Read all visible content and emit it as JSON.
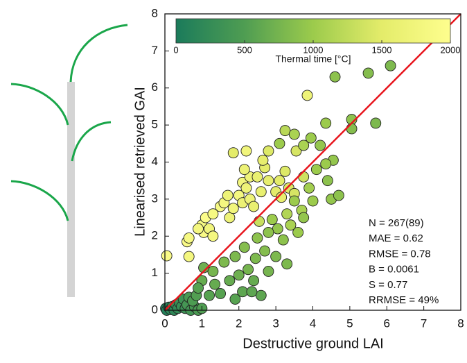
{
  "chart_data": {
    "type": "scatter",
    "x_label": "Destructive ground LAI",
    "y_label": "Linearised retrieved GAI",
    "xlim": [
      0,
      8
    ],
    "ylim": [
      0,
      8
    ],
    "xticks": [
      0,
      1,
      2,
      3,
      4,
      5,
      6,
      7,
      8
    ],
    "yticks": [
      0,
      1,
      2,
      3,
      4,
      5,
      6,
      7,
      8
    ],
    "identity_line": true,
    "identity_color": "#e8141c",
    "marker_edge_color": "#222222",
    "colorbar": {
      "label": "Thermal time  [°C]",
      "lim": [
        0,
        2000
      ],
      "ticks": [
        0,
        500,
        1000,
        1500,
        2000
      ],
      "colormap": [
        "#1b7b5b",
        "#4f9d52",
        "#9ccb4c",
        "#e4ec6a",
        "#fefe8e"
      ]
    },
    "annotations": [
      "N = 267(89)",
      "MAE = 0.62",
      "RMSE = 0.78",
      "B = 0.0061",
      "S = 0.77",
      "RRMSE = 49%"
    ],
    "x": [
      0.02,
      0.05,
      0.1,
      0.15,
      0.2,
      0.25,
      0.3,
      0.35,
      0.4,
      0.45,
      0.5,
      0.55,
      0.6,
      0.7,
      0.8,
      0.9,
      1.0,
      0.65,
      0.75,
      0.85,
      0.05,
      0.6,
      0.65,
      0.65,
      1.0,
      1.05,
      1.1,
      0.9,
      1.2,
      1.3,
      1.5,
      1.6,
      1.3,
      1.75,
      1.85,
      1.7,
      2.0,
      2.1,
      2.2,
      2.3,
      2.1,
      2.3,
      2.4,
      2.2,
      1.85,
      2.15,
      2.5,
      2.6,
      2.8,
      2.7,
      2.65,
      2.8,
      3.1,
      3.25,
      3.35,
      3.5,
      3.0,
      3.15,
      2.55,
      3.85,
      3.55,
      3.75,
      3.25,
      3.5,
      3.1,
      3.75,
      3.95,
      4.2,
      4.35,
      4.6,
      5.5,
      6.1,
      5.05,
      5.05,
      5.7,
      4.55,
      4.35,
      4.1,
      4.4,
      3.9,
      4.0,
      4.5,
      4.7,
      3.7,
      3.5,
      3.3,
      3.05,
      3.4,
      2.9,
      2.8,
      2.5,
      2.7,
      3.2,
      3.6,
      3.75,
      3.0,
      2.45,
      2.15,
      1.9,
      2.25,
      2.8,
      3.3,
      2.0,
      1.6,
      1.3,
      1.05,
      1.35,
      1.0,
      1.75,
      2.1,
      2.4,
      2.6,
      1.5,
      1.2,
      0.9,
      1.9,
      2.35
    ],
    "y": [
      0.05,
      0.0,
      0.08,
      0.02,
      0.1,
      0.0,
      0.15,
      0.05,
      0.2,
      0.1,
      0.3,
      0.05,
      0.15,
      0.0,
      0.1,
      0.0,
      0.05,
      0.35,
      0.25,
      0.4,
      1.47,
      1.85,
      1.95,
      1.45,
      2.3,
      2.1,
      2.5,
      2.2,
      2.2,
      2.0,
      2.8,
      2.9,
      2.6,
      2.5,
      2.75,
      3.1,
      3.1,
      3.45,
      3.3,
      3.6,
      2.9,
      3.0,
      2.8,
      4.3,
      4.25,
      3.8,
      3.6,
      3.2,
      3.5,
      3.85,
      4.05,
      4.3,
      3.5,
      3.75,
      3.3,
      3.15,
      3.2,
      3.05,
      2.4,
      5.8,
      4.3,
      3.6,
      4.85,
      4.75,
      4.5,
      4.45,
      4.65,
      4.45,
      5.05,
      6.3,
      6.4,
      6.6,
      5.15,
      4.9,
      5.05,
      4.05,
      3.95,
      3.8,
      3.5,
      3.3,
      2.95,
      3.0,
      3.1,
      2.7,
      2.95,
      2.6,
      2.2,
      2.3,
      2.45,
      2.1,
      1.95,
      1.6,
      1.9,
      2.1,
      2.5,
      1.45,
      1.4,
      1.7,
      1.45,
      1.1,
      1.05,
      1.25,
      0.95,
      1.3,
      1.05,
      1.15,
      0.7,
      0.8,
      0.8,
      0.5,
      0.8,
      0.4,
      0.45,
      0.4,
      0.6,
      0.3,
      0.5
    ],
    "thermal_time": [
      50,
      80,
      120,
      150,
      200,
      180,
      250,
      220,
      300,
      280,
      350,
      320,
      400,
      380,
      420,
      450,
      500,
      450,
      480,
      520,
      1900,
      1900,
      1850,
      1800,
      1850,
      1900,
      1950,
      1800,
      1750,
      1800,
      1850,
      1800,
      1850,
      1700,
      1750,
      1700,
      1800,
      1750,
      1700,
      1700,
      1650,
      1700,
      1600,
      1750,
      1500,
      1650,
      1600,
      1600,
      1550,
      1500,
      1550,
      1450,
      1500,
      1450,
      1450,
      1400,
      1500,
      1550,
      1300,
      1700,
      1400,
      1350,
      1200,
      1100,
      1000,
      1100,
      1000,
      950,
      1000,
      900,
      850,
      800,
      900,
      850,
      800,
      950,
      1000,
      1000,
      900,
      1050,
      1000,
      950,
      900,
      1100,
      1000,
      1150,
      950,
      1100,
      1000,
      900,
      900,
      850,
      900,
      1000,
      950,
      800,
      800,
      850,
      800,
      750,
      750,
      800,
      700,
      800,
      750,
      700,
      650,
      650,
      650,
      600,
      650,
      600,
      550,
      550,
      550,
      550,
      600
    ]
  }
}
